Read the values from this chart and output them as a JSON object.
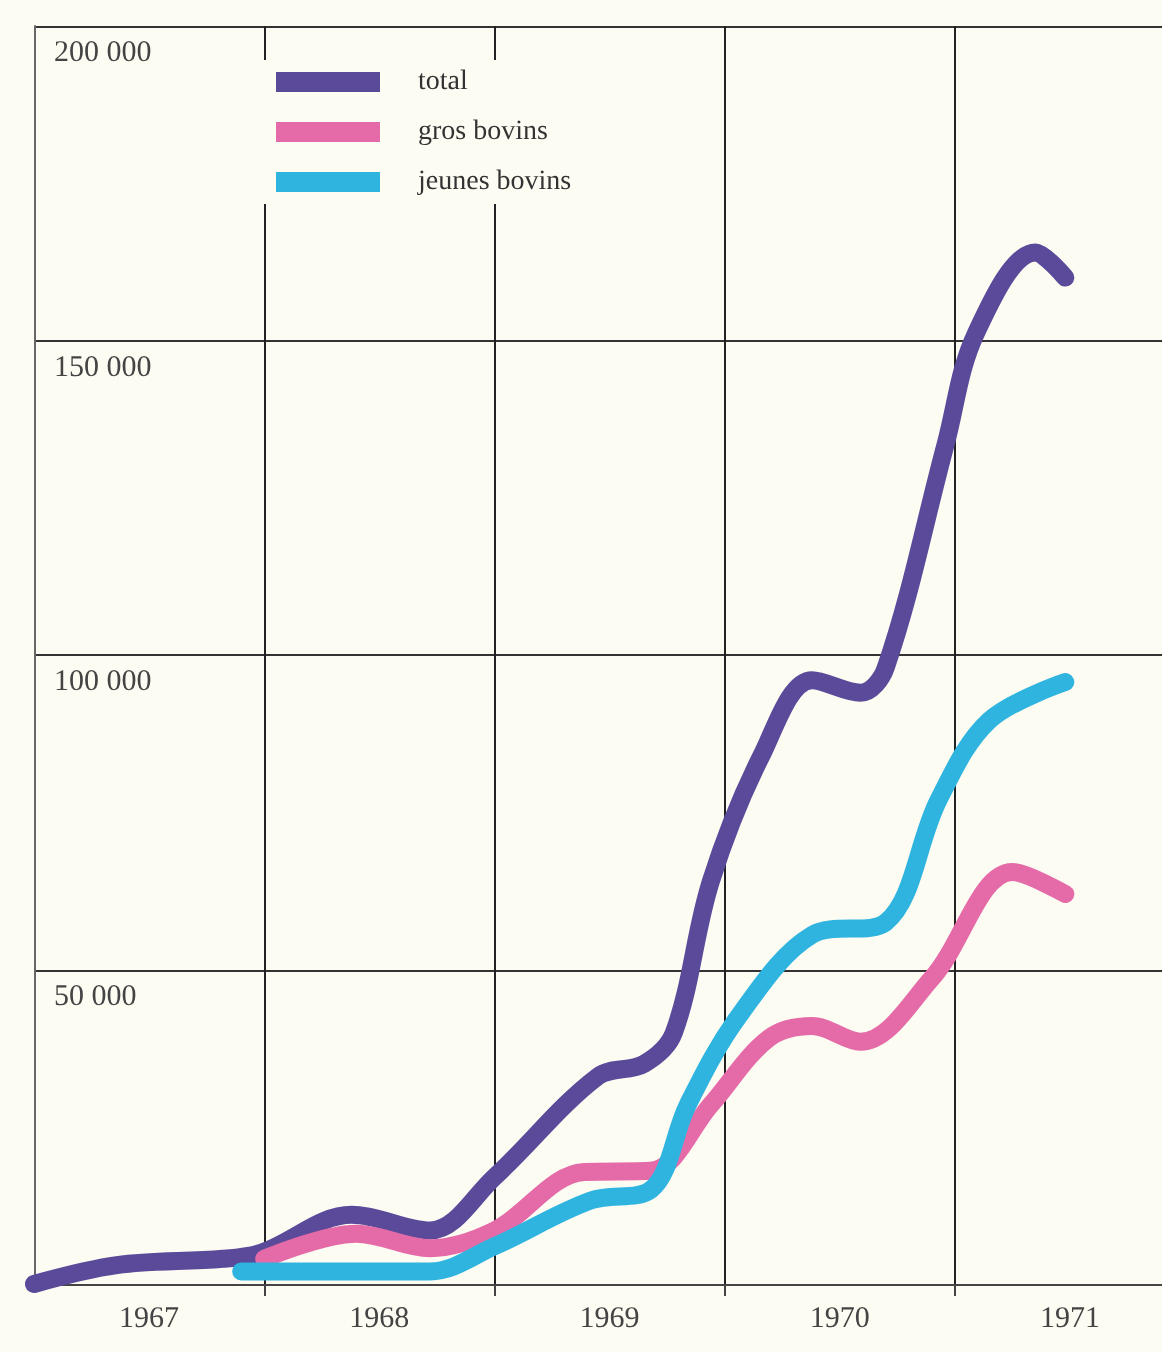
{
  "chart_data": {
    "type": "line",
    "xlim": [
      1967,
      1971.9
    ],
    "ylim": [
      0,
      200000
    ],
    "xticks": [
      {
        "value": 1967.5,
        "label": "1967"
      },
      {
        "value": 1968,
        "label": null
      },
      {
        "value": 1968.5,
        "label": "1968"
      },
      {
        "value": 1969,
        "label": null
      },
      {
        "value": 1969.5,
        "label": "1969"
      },
      {
        "value": 1970,
        "label": null
      },
      {
        "value": 1970.5,
        "label": "1970"
      },
      {
        "value": 1971,
        "label": null
      },
      {
        "value": 1971.5,
        "label": "1971"
      }
    ],
    "yticks": [
      {
        "value": 0,
        "label": null
      },
      {
        "value": 50000,
        "label": "50 000"
      },
      {
        "value": 100000,
        "label": "100 000"
      },
      {
        "value": 150000,
        "label": "150 000"
      },
      {
        "value": 200000,
        "label": "200 000"
      }
    ],
    "grid": true,
    "legend": "top left",
    "marker": "none",
    "line_style": "solid",
    "series": [
      {
        "name": "total",
        "color": "#5b4a9a",
        "x": [
          1967.0,
          1967.36,
          1967.82,
          1967.99,
          1968.38,
          1968.72,
          1969.0,
          1969.45,
          1969.65,
          1969.78,
          1969.94,
          1970.16,
          1970.38,
          1970.59,
          1970.7,
          1970.96,
          1971.09,
          1971.35,
          1971.48
        ],
        "values": [
          0,
          3000,
          4000,
          5000,
          11000,
          8500,
          17000,
          33000,
          35000,
          40000,
          64000,
          84000,
          96000,
          94000,
          98000,
          133500,
          151000,
          164000,
          160000
        ]
      },
      {
        "name": "gros bovins",
        "color": "#e56aa8",
        "x": [
          1968.0,
          1968.4,
          1968.72,
          1969.0,
          1969.39,
          1969.68,
          1969.94,
          1970.19,
          1970.38,
          1970.59,
          1970.9,
          1971.25,
          1971.48
        ],
        "values": [
          4000,
          8000,
          5700,
          8500,
          17800,
          18000,
          28500,
          39000,
          41000,
          38500,
          48600,
          65500,
          62000
        ]
      },
      {
        "name": "jeunes bovins",
        "color": "#2fb4e0",
        "x": [
          1967.9,
          1968.33,
          1968.72,
          1969.0,
          1969.42,
          1969.68,
          1969.84,
          1970.06,
          1970.38,
          1970.7,
          1970.93,
          1971.15,
          1971.48
        ],
        "values": [
          2000,
          2000,
          2000,
          6000,
          13300,
          15000,
          28500,
          42500,
          55500,
          57500,
          77000,
          89600,
          95700
        ]
      }
    ]
  }
}
